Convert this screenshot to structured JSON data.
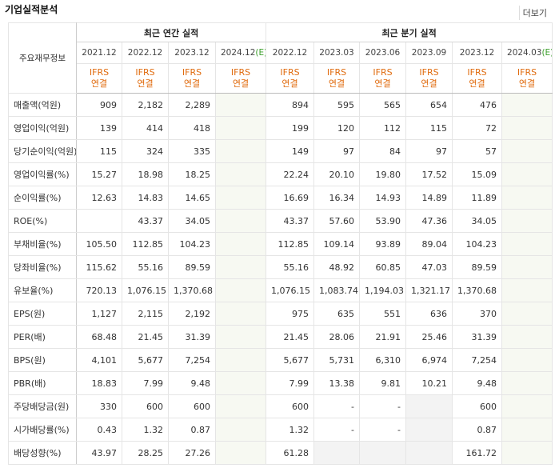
{
  "header": {
    "title": "기업실적분석",
    "more": "더보기"
  },
  "table": {
    "corner": "주요재무정보",
    "groups": [
      {
        "label": "최근 연간 실적",
        "span": 4
      },
      {
        "label": "최근 분기 실적",
        "span": 6
      }
    ],
    "columns": [
      {
        "period": "2021.12",
        "standard": "IFRS",
        "basis": "연결"
      },
      {
        "period": "2022.12",
        "standard": "IFRS",
        "basis": "연결"
      },
      {
        "period": "2023.12",
        "standard": "IFRS",
        "basis": "연결"
      },
      {
        "period": "2024.12",
        "estimate": "(E)",
        "standard": "IFRS",
        "basis": "연결"
      },
      {
        "period": "2022.12",
        "standard": "IFRS",
        "basis": "연결"
      },
      {
        "period": "2023.03",
        "standard": "IFRS",
        "basis": "연결"
      },
      {
        "period": "2023.06",
        "standard": "IFRS",
        "basis": "연결"
      },
      {
        "period": "2023.09",
        "standard": "IFRS",
        "basis": "연결"
      },
      {
        "period": "2023.12",
        "standard": "IFRS",
        "basis": "연결"
      },
      {
        "period": "2024.03",
        "estimate": "(E)",
        "standard": "IFRS",
        "basis": "연결"
      }
    ],
    "sections": [
      [
        {
          "label": "매출액(억원)",
          "cells": [
            "909",
            "2,182",
            "2,289",
            null,
            "894",
            "595",
            "565",
            "654",
            "476",
            null
          ]
        },
        {
          "label": "영업이익(억원)",
          "cells": [
            "139",
            "414",
            "418",
            null,
            "199",
            "120",
            "112",
            "115",
            "72",
            null
          ]
        },
        {
          "label": "당기순이익(억원)",
          "cells": [
            "115",
            "324",
            "335",
            null,
            "149",
            "97",
            "84",
            "97",
            "57",
            null
          ]
        }
      ],
      [
        {
          "label": "영업이익률(%)",
          "cells": [
            "15.27",
            "18.98",
            "18.25",
            null,
            "22.24",
            "20.10",
            "19.80",
            "17.52",
            "15.09",
            null
          ]
        },
        {
          "label": "순이익률(%)",
          "cells": [
            "12.63",
            "14.83",
            "14.65",
            null,
            "16.69",
            "16.34",
            "14.93",
            "14.89",
            "11.89",
            null
          ]
        },
        {
          "label": "ROE(%)",
          "cells": [
            null,
            "43.37",
            "34.05",
            null,
            "43.37",
            "57.60",
            "53.90",
            "47.36",
            "34.05",
            null
          ]
        }
      ],
      [
        {
          "label": "부채비율(%)",
          "cells": [
            "105.50",
            "112.85",
            "104.23",
            null,
            "112.85",
            "109.14",
            "93.89",
            "89.04",
            "104.23",
            null
          ]
        },
        {
          "label": "당좌비율(%)",
          "cells": [
            "115.62",
            "55.16",
            "89.59",
            null,
            "55.16",
            "48.92",
            "60.85",
            "47.03",
            "89.59",
            null
          ]
        },
        {
          "label": "유보율(%)",
          "cells": [
            "720.13",
            "1,076.15",
            "1,370.68",
            null,
            "1,076.15",
            "1,083.74",
            "1,194.03",
            "1,321.17",
            "1,370.68",
            null
          ]
        }
      ],
      [
        {
          "label": "EPS(원)",
          "cells": [
            "1,127",
            "2,115",
            "2,192",
            null,
            "975",
            "635",
            "551",
            "636",
            "370",
            null
          ]
        },
        {
          "label": "PER(배)",
          "cells": [
            "68.48",
            "21.45",
            "31.39",
            null,
            "21.45",
            "28.06",
            "21.91",
            "25.46",
            "31.39",
            null
          ]
        },
        {
          "label": "BPS(원)",
          "cells": [
            "4,101",
            "5,677",
            "7,254",
            null,
            "5,677",
            "5,731",
            "6,310",
            "6,974",
            "7,254",
            null
          ]
        },
        {
          "label": "PBR(배)",
          "cells": [
            "18.83",
            "7.99",
            "9.48",
            null,
            "7.99",
            "13.38",
            "9.81",
            "10.21",
            "9.48",
            null
          ]
        }
      ],
      [
        {
          "label": "주당배당금(원)",
          "cells": [
            "330",
            "600",
            "600",
            null,
            "600",
            "-",
            "-",
            null,
            "600",
            null
          ]
        },
        {
          "label": "시가배당률(%)",
          "cells": [
            "0.43",
            "1.32",
            "0.87",
            null,
            "1.32",
            "-",
            "-",
            null,
            "0.87",
            null
          ]
        },
        {
          "label": "배당성향(%)",
          "cells": [
            "43.97",
            "28.25",
            "27.26",
            null,
            "61.28",
            null,
            null,
            null,
            "161.72",
            null
          ]
        }
      ]
    ]
  }
}
